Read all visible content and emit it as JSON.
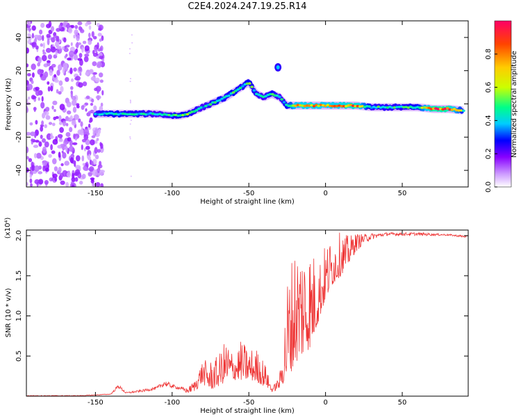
{
  "title": "C2E4.2024.247.19.25.R14",
  "chart_data": [
    {
      "type": "heatmap",
      "xlabel": "Height of straight line (km)",
      "ylabel": "Frequency (Hz)",
      "xlim": [
        -195,
        93
      ],
      "ylim": [
        -50,
        50
      ],
      "x_ticks": [
        -150,
        -100,
        -50,
        0,
        50
      ],
      "x_tick_labels": [
        "-150",
        "-100",
        "-50",
        "0",
        "50"
      ],
      "y_ticks": [
        -40,
        -20,
        0,
        20,
        40
      ],
      "y_tick_labels": [
        "-40",
        "-20",
        "0",
        "20",
        "40"
      ],
      "colorbar": {
        "label": "Normalized spectral amplitude",
        "range": [
          0,
          1
        ],
        "ticks": [
          0.0,
          0.2,
          0.4,
          0.6,
          0.8
        ],
        "tick_labels": [
          "0.0",
          "0.2",
          "0.4",
          "0.6",
          "0.8"
        ],
        "colors": [
          "#ffffff",
          "#cc99ff",
          "#8800ff",
          "#0000ff",
          "#00ccff",
          "#00ff88",
          "#ccff00",
          "#ffcc00",
          "#ff4400",
          "#ff0066"
        ]
      },
      "ridge": {
        "x": [
          -150,
          -140,
          -130,
          -120,
          -110,
          -100,
          -95,
          -90,
          -85,
          -80,
          -75,
          -70,
          -65,
          -60,
          -55,
          -50,
          -45,
          -40,
          -35,
          -30,
          -25,
          -20,
          -10,
          0,
          10,
          20,
          30,
          40,
          50,
          60,
          70,
          80,
          90
        ],
        "frequency": [
          -6,
          -6,
          -6,
          -6,
          -6,
          -7,
          -7,
          -6,
          -4,
          -2,
          0,
          2,
          4,
          7,
          10,
          13,
          6,
          4,
          6,
          4,
          -1,
          -1,
          -1,
          -1,
          -1,
          -1,
          -2,
          -2,
          -2,
          -2,
          -3,
          -3,
          -4
        ],
        "amplitude": [
          0.5,
          0.6,
          0.55,
          0.55,
          0.5,
          0.55,
          0.6,
          0.6,
          0.55,
          0.5,
          0.55,
          0.6,
          0.55,
          0.6,
          0.55,
          0.6,
          0.55,
          0.5,
          0.6,
          0.5,
          0.6,
          0.8,
          0.85,
          0.8,
          0.85,
          0.9,
          0.55,
          0.55,
          0.55,
          0.6,
          0.95,
          0.95,
          0.6
        ]
      },
      "blobs": [
        {
          "x": -31,
          "frequency": 22,
          "amplitude": 0.3
        }
      ],
      "noise_region_x": [
        -195,
        -145
      ]
    },
    {
      "type": "line",
      "xlabel": "Height of straight line (km)",
      "ylabel": "SNR (10 * v/v)",
      "y_multiplier_label": "(x10⁴)",
      "xlim": [
        -195,
        93
      ],
      "ylim": [
        0,
        2.07
      ],
      "x_ticks": [
        -150,
        -100,
        -50,
        0,
        50
      ],
      "x_tick_labels": [
        "-150",
        "-100",
        "-50",
        "0",
        "50"
      ],
      "y_ticks": [
        0.5,
        1.0,
        1.5,
        2.0
      ],
      "y_tick_labels": [
        "0.5",
        "1.0",
        "1.5",
        "2.0"
      ],
      "color": "#ee3333",
      "envelope": {
        "x": [
          -195,
          -160,
          -140,
          -135,
          -130,
          -120,
          -110,
          -105,
          -100,
          -95,
          -90,
          -85,
          -80,
          -75,
          -70,
          -65,
          -60,
          -55,
          -50,
          -45,
          -40,
          -35,
          -30,
          -28,
          -25,
          -20,
          -15,
          -10,
          -5,
          0,
          5,
          10,
          15,
          20,
          25,
          30,
          35,
          40,
          50,
          60,
          70,
          80,
          93
        ],
        "base": [
          0.0,
          0.0,
          0.02,
          0.1,
          0.03,
          0.05,
          0.08,
          0.12,
          0.1,
          0.08,
          0.03,
          0.06,
          0.15,
          0.08,
          0.12,
          0.18,
          0.2,
          0.2,
          0.2,
          0.18,
          0.12,
          0.05,
          0.08,
          0.15,
          0.2,
          0.4,
          0.5,
          0.6,
          0.9,
          1.2,
          1.4,
          1.5,
          1.65,
          1.8,
          1.9,
          1.95,
          1.98,
          2.0,
          2.0,
          2.0,
          2.0,
          2.0,
          1.97
        ],
        "peak": [
          0.01,
          0.01,
          0.03,
          0.15,
          0.05,
          0.08,
          0.12,
          0.2,
          0.15,
          0.12,
          0.1,
          0.2,
          0.45,
          0.45,
          0.5,
          0.72,
          0.55,
          0.7,
          0.6,
          0.6,
          0.45,
          0.1,
          0.25,
          0.6,
          1.5,
          1.95,
          2.0,
          1.9,
          1.7,
          1.9,
          2.0,
          2.05,
          2.0,
          2.03,
          2.02,
          2.03,
          2.03,
          2.04,
          2.04,
          2.04,
          2.03,
          2.02,
          2.0
        ]
      }
    }
  ]
}
